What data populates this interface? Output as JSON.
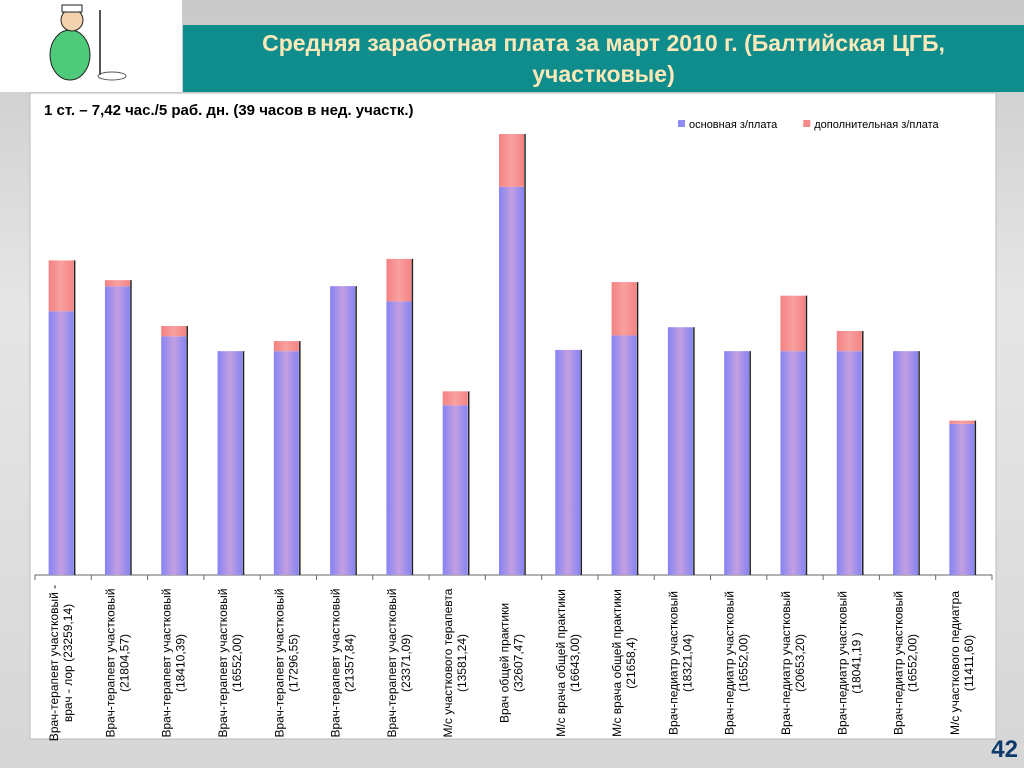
{
  "chart_data": {
    "type": "bar",
    "stacked": true,
    "title": "Средняя заработная плата за март 2010 г. (Балтийская ЦГБ, участковые)",
    "subtitle": "1 ст. – 7,42 час./5 раб. дн. (39 часов в нед. участк.)",
    "page_number": "42",
    "legend": "top-right",
    "categories": [
      "Врач-терапевт участковый - врач - лор (23259,14)",
      "Врач-терапевт участковый (21804,57)",
      "Врач-терапевт участковый (18410,39)",
      "Врач-терапевт участковый (16552,00)",
      "Врач-терапевт участковый (17296,55)",
      "Врач-терапевт участковый (21357,84)",
      "Врач-терапевт участковый (23371,09)",
      "М/с участкового терапевта (13581,24)",
      "Врач общей практики (32607,47)",
      "М/с врача общей практики (16643,00)",
      "М/с врача общей практики (21658,4)",
      "Врач-педиатр участковый (18321,04)",
      "Врач-педиатр участковый (16552,00)",
      "Врач-педиатр участковый (20653,20)",
      "Врач-педиатр участковый (18041,19 )",
      "Врач-педиатр участковый (16552,00)",
      "М/с участкового педиатра (11411,60)"
    ],
    "series": [
      {
        "name": "основная з/плата",
        "color": "#8c8cf2",
        "values": [
          19500,
          21350,
          17650,
          16552,
          16552,
          21357.84,
          20230,
          12550,
          28700,
          16643,
          17710,
          18321.04,
          16552,
          16552,
          16552,
          16552,
          11180
        ]
      },
      {
        "name": "дополнительная з/плата",
        "color": "#f58a8a",
        "values": [
          3759,
          450,
          760,
          0,
          744.55,
          0,
          3141,
          1031,
          3907,
          0,
          3948,
          0,
          0,
          4101.2,
          1489.19,
          0,
          231.6
        ]
      }
    ]
  }
}
